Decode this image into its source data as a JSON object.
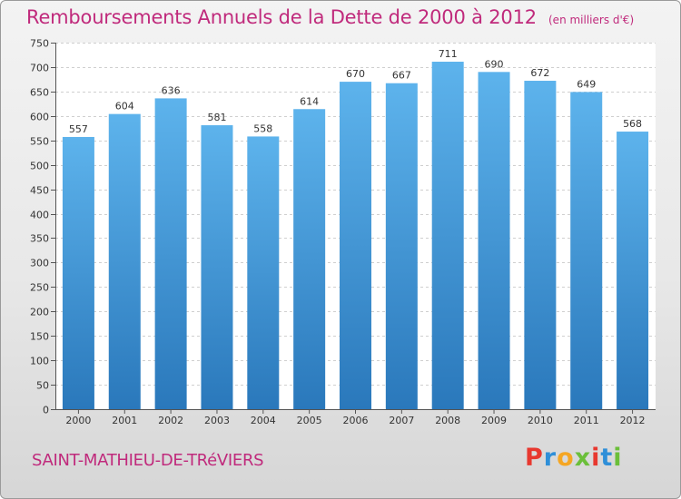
{
  "header": {
    "title": "Remboursements Annuels de la Dette de 2000 à 2012",
    "unit": "(en milliers d'€)"
  },
  "footer": {
    "commune": "SAINT-MATHIEU-DE-TRéVIERS",
    "brand_letters": [
      "P",
      "r",
      "o",
      "x",
      "i",
      "t",
      "i"
    ],
    "brand_colors": [
      "#e8382f",
      "#2f8fd8",
      "#f5a623",
      "#6bbf3a",
      "#e8382f",
      "#2f8fd8",
      "#6bbf3a"
    ]
  },
  "chart_data": {
    "type": "bar",
    "title": "Remboursements Annuels de la Dette de 2000 à 2012",
    "subtitle": "(en milliers d'€)",
    "xlabel": "",
    "ylabel": "",
    "categories": [
      "2000",
      "2001",
      "2002",
      "2003",
      "2004",
      "2005",
      "2006",
      "2007",
      "2008",
      "2009",
      "2010",
      "2011",
      "2012"
    ],
    "values": [
      557,
      604,
      636,
      581,
      558,
      614,
      670,
      667,
      711,
      690,
      672,
      649,
      568
    ],
    "ylim": [
      0,
      750
    ],
    "yticks": [
      0,
      50,
      100,
      150,
      200,
      250,
      300,
      350,
      400,
      450,
      500,
      550,
      600,
      650,
      700,
      750
    ],
    "grid": true,
    "bar_color_light": "#5db3ec",
    "bar_color_dark": "#2a78bb",
    "label_color": "#333333",
    "grid_color": "#cfcfcf",
    "plot_background": "#ffffff"
  }
}
